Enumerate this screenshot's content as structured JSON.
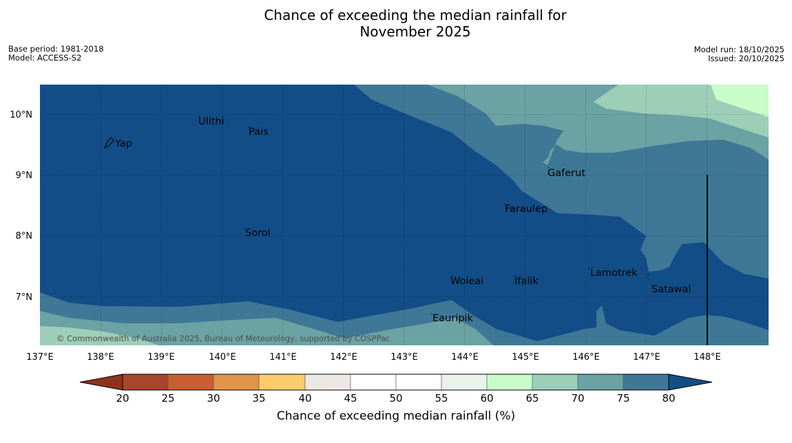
{
  "title": {
    "line1": "Chance of exceeding the median rainfall for",
    "line2": "November 2025"
  },
  "meta": {
    "base_period": "Base period: 1981-2018",
    "model": "Model: ACCESS-S2",
    "model_run": "Model run: 18/10/2025",
    "issued": "Issued: 20/10/2025"
  },
  "axes": {
    "lon_labels": [
      "137°E",
      "138°E",
      "139°E",
      "140°E",
      "141°E",
      "142°E",
      "143°E",
      "144°E",
      "145°E",
      "146°E",
      "147°E",
      "148°E"
    ],
    "lat_labels": [
      "10°N",
      "9°N",
      "8°N",
      "7°N"
    ]
  },
  "places": [
    "Yap",
    "Ulithi",
    "Pais",
    "Gaferut",
    "Faraulep",
    "Sorol",
    "Woleai",
    "Ifalik",
    "Lamotrek",
    "Satawal",
    "Eauripik"
  ],
  "copyright": "© Commonwealth of Australia 2025, Bureau of Meteorology, supported by COSPPac",
  "legend": {
    "tick_labels": [
      "20",
      "25",
      "30",
      "35",
      "40",
      "45",
      "50",
      "55",
      "60",
      "65",
      "70",
      "75",
      "80"
    ],
    "colors": [
      "#a9452a",
      "#c95f30",
      "#e29447",
      "#fccc6a",
      "#ece8e3",
      "#ffffff",
      "#ffffff",
      "#eaf3ea",
      "#c9fcc9",
      "#9dcfb8",
      "#6ba2a3",
      "#3f7797"
    ],
    "low_color": "#8e321d",
    "high_color": "#134d87",
    "label": "Chance of exceeding median rainfall (%)"
  },
  "map_colors": {
    "c80": "#134d87",
    "c75": "#3f7797",
    "c70": "#6ba2a3",
    "c65": "#9dcfb8",
    "c60": "#c9fcc9"
  }
}
